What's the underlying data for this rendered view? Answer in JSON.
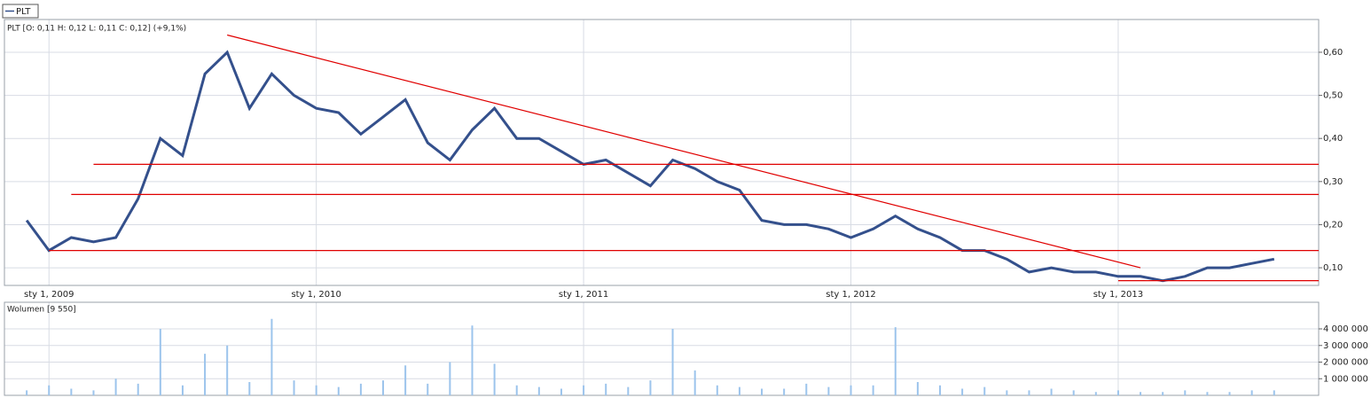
{
  "chart_data": [
    {
      "type": "line",
      "legend": "PLT",
      "title": "PLT [O: 0,11  H: 0,12  L: 0,11  C: 0,12] (+9,1%)",
      "grid": true,
      "xlim": [
        "2008-11",
        "2013-10"
      ],
      "xticks": [
        {
          "value": "2009-01",
          "label": "sty 1, 2009"
        },
        {
          "value": "2010-01",
          "label": "sty 1, 2010"
        },
        {
          "value": "2011-01",
          "label": "sty 1, 2011"
        },
        {
          "value": "2012-01",
          "label": "sty 1, 2012"
        },
        {
          "value": "2013-01",
          "label": "sty 1, 2013"
        }
      ],
      "ylim": [
        0.059,
        0.676
      ],
      "yticks": [
        {
          "value": 0.1,
          "label": "0,10"
        },
        {
          "value": 0.2,
          "label": "0,20"
        },
        {
          "value": 0.3,
          "label": "0,30"
        },
        {
          "value": 0.4,
          "label": "0,40"
        },
        {
          "value": 0.5,
          "label": "0,50"
        },
        {
          "value": 0.6,
          "label": "0,60"
        }
      ],
      "x": [
        "2008-12",
        "2009-01",
        "2009-02",
        "2009-03",
        "2009-04",
        "2009-05",
        "2009-06",
        "2009-07",
        "2009-08",
        "2009-09",
        "2009-10",
        "2009-11",
        "2009-12",
        "2010-01",
        "2010-02",
        "2010-03",
        "2010-04",
        "2010-05",
        "2010-06",
        "2010-07",
        "2010-08",
        "2010-09",
        "2010-10",
        "2010-11",
        "2010-12",
        "2011-01",
        "2011-02",
        "2011-03",
        "2011-04",
        "2011-05",
        "2011-06",
        "2011-07",
        "2011-08",
        "2011-09",
        "2011-10",
        "2011-11",
        "2011-12",
        "2012-01",
        "2012-02",
        "2012-03",
        "2012-04",
        "2012-05",
        "2012-06",
        "2012-07",
        "2012-08",
        "2012-09",
        "2012-10",
        "2012-11",
        "2012-12",
        "2013-01",
        "2013-02",
        "2013-03",
        "2013-04",
        "2013-05",
        "2013-06",
        "2013-07",
        "2013-08"
      ],
      "series": [
        {
          "name": "PLT",
          "color": "#34508c",
          "values": [
            0.21,
            0.14,
            0.17,
            0.16,
            0.17,
            0.26,
            0.4,
            0.36,
            0.55,
            0.6,
            0.47,
            0.55,
            0.5,
            0.47,
            0.46,
            0.41,
            0.45,
            0.49,
            0.39,
            0.35,
            0.42,
            0.47,
            0.4,
            0.4,
            0.37,
            0.34,
            0.35,
            0.32,
            0.29,
            0.35,
            0.33,
            0.3,
            0.28,
            0.21,
            0.2,
            0.2,
            0.19,
            0.17,
            0.19,
            0.22,
            0.19,
            0.17,
            0.14,
            0.14,
            0.12,
            0.09,
            0.1,
            0.09,
            0.09,
            0.08,
            0.08,
            0.07,
            0.08,
            0.1,
            0.1,
            0.11,
            0.12
          ]
        }
      ],
      "lines": [
        {
          "color": "#e00000",
          "x": [
            "2009-09",
            "2013-02"
          ],
          "y": [
            0.64,
            0.1
          ]
        },
        {
          "color": "#e00000",
          "x": [
            "2009-03",
            "2013-10"
          ],
          "y": [
            0.34,
            0.34
          ]
        },
        {
          "color": "#e00000",
          "x": [
            "2009-02",
            "2013-10"
          ],
          "y": [
            0.27,
            0.27
          ]
        },
        {
          "color": "#e00000",
          "x": [
            "2009-01",
            "2013-10"
          ],
          "y": [
            0.14,
            0.14
          ]
        },
        {
          "color": "#e00000",
          "x": [
            "2013-01",
            "2013-10"
          ],
          "y": [
            0.07,
            0.07
          ]
        }
      ]
    },
    {
      "type": "bar",
      "title": "Wolumen [9 550]",
      "color": "#9cc4ec",
      "ylim": [
        0,
        5600000
      ],
      "yticks": [
        {
          "value": 1000000,
          "label": "1 000 000"
        },
        {
          "value": 2000000,
          "label": "2 000 000"
        },
        {
          "value": 3000000,
          "label": "3 000 000"
        },
        {
          "value": 4000000,
          "label": "4 000 000"
        }
      ],
      "values": [
        300000,
        600000,
        400000,
        300000,
        1000000,
        700000,
        4000000,
        600000,
        2500000,
        3000000,
        800000,
        4600000,
        900000,
        600000,
        500000,
        700000,
        900000,
        1800000,
        700000,
        2000000,
        4200000,
        1900000,
        600000,
        500000,
        400000,
        600000,
        700000,
        500000,
        900000,
        4000000,
        1500000,
        600000,
        500000,
        400000,
        400000,
        700000,
        500000,
        600000,
        600000,
        4100000,
        800000,
        600000,
        400000,
        500000,
        300000,
        300000,
        400000,
        300000,
        200000,
        300000,
        200000,
        200000,
        300000,
        200000,
        200000,
        300000,
        300000
      ]
    }
  ]
}
